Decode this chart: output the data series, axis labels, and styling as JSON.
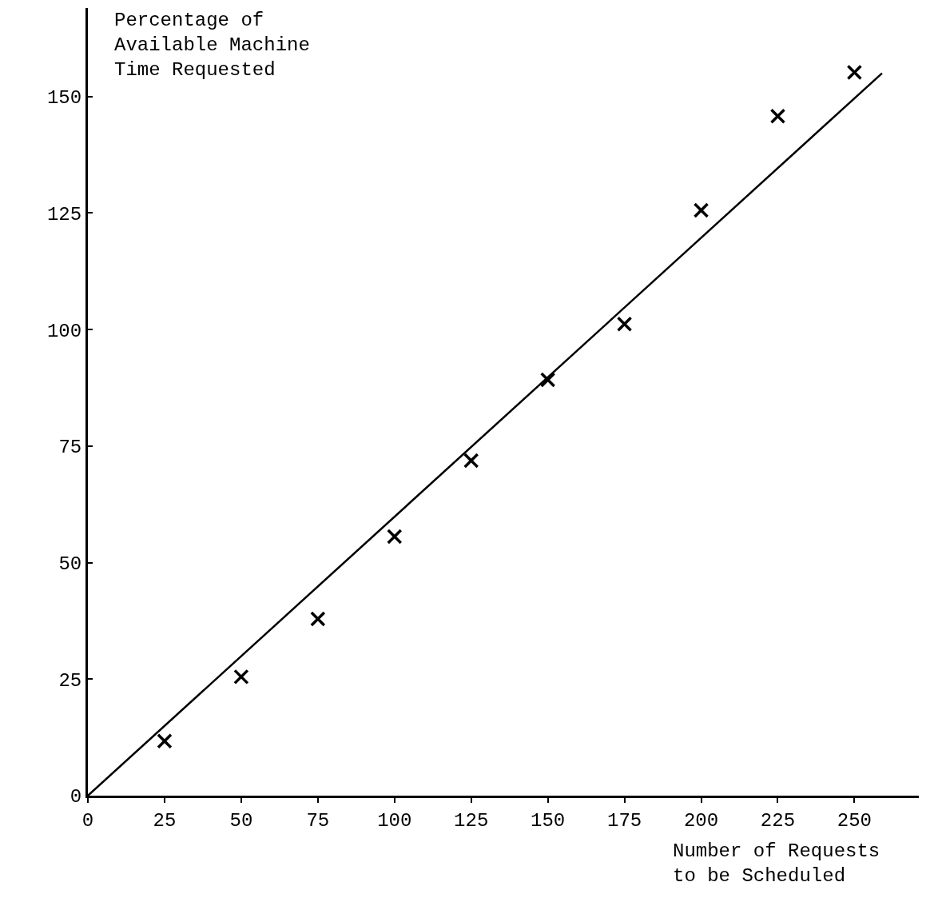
{
  "chart_data": {
    "type": "scatter",
    "xlabel": "Number of Requests\nto be Scheduled",
    "ylabel": "Percentage of\nAvailable Machine\nTime Requested",
    "x": [
      25,
      50,
      75,
      100,
      125,
      150,
      175,
      200,
      225,
      250
    ],
    "series": [
      {
        "color": "#000000",
        "marker": "cross",
        "values": [
          11.7,
          25.5,
          37.9,
          55.6,
          71.9,
          89.2,
          101.2,
          125.6,
          145.8,
          155.2
        ]
      },
      {
        "type": "line",
        "color": "#000000",
        "marker": "none",
        "line_style": "solid",
        "x": [
          0,
          259
        ],
        "values": [
          0,
          155
        ]
      }
    ],
    "xlim": [
      0,
      271
    ],
    "ylim": [
      0,
      169
    ],
    "xticks": [
      0,
      25,
      50,
      75,
      100,
      125,
      150,
      175,
      200,
      225,
      250
    ],
    "yticks": [
      0,
      25,
      50,
      75,
      100,
      125,
      150
    ]
  }
}
